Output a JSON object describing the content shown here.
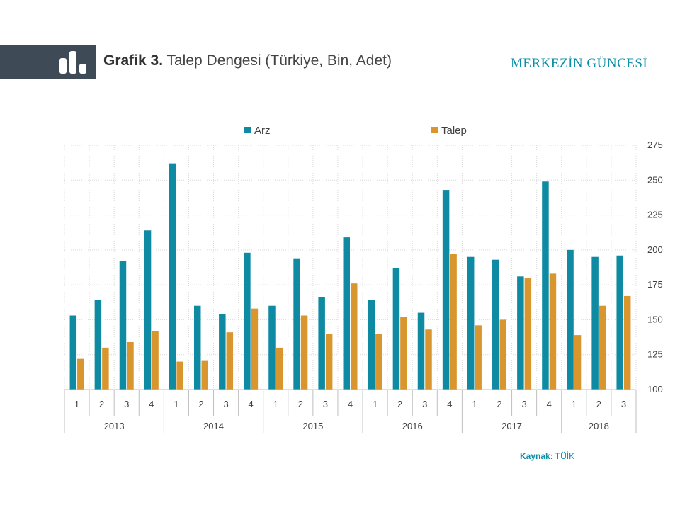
{
  "header": {
    "title_strong": "Grafik 3.",
    "title_rest": " Talep Dengesi (Türkiye, Bin, Adet)",
    "brand": "MERKEZİN GÜNCESİ",
    "logo_icon": "bar-chart-icon"
  },
  "source": {
    "label": "Kaynak:",
    "value": " TÜİK"
  },
  "colors": {
    "arz": "#0e8ba3",
    "talep": "#d9962f",
    "header_band": "#3e4a56",
    "brand": "#0d8ea8"
  },
  "chart_data": {
    "type": "bar",
    "legend_position": "top",
    "grid": true,
    "y_axis_side": "right",
    "ylim": [
      100,
      275
    ],
    "yticks": [
      100,
      125,
      150,
      175,
      200,
      225,
      250,
      275
    ],
    "categories": [
      "1",
      "2",
      "3",
      "4",
      "1",
      "2",
      "3",
      "4",
      "1",
      "2",
      "3",
      "4",
      "1",
      "2",
      "3",
      "4",
      "1",
      "2",
      "3",
      "4",
      "1",
      "2",
      "3"
    ],
    "years": [
      {
        "label": "2013",
        "count": 4
      },
      {
        "label": "2014",
        "count": 4
      },
      {
        "label": "2015",
        "count": 4
      },
      {
        "label": "2016",
        "count": 4
      },
      {
        "label": "2017",
        "count": 4
      },
      {
        "label": "2018",
        "count": 3
      }
    ],
    "series": [
      {
        "name": "Arz",
        "values": [
          153,
          164,
          192,
          214,
          262,
          160,
          154,
          198,
          160,
          194,
          166,
          209,
          164,
          187,
          155,
          243,
          195,
          193,
          181,
          249,
          200,
          195,
          196
        ]
      },
      {
        "name": "Talep",
        "values": [
          122,
          130,
          134,
          142,
          120,
          121,
          141,
          158,
          130,
          153,
          140,
          176,
          140,
          152,
          143,
          197,
          146,
          150,
          180,
          183,
          139,
          160,
          167
        ]
      }
    ]
  }
}
